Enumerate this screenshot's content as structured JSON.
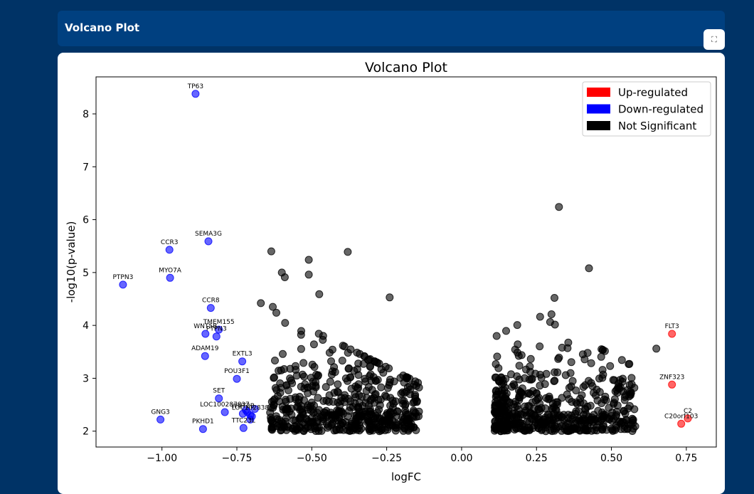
{
  "panel": {
    "title": "Volcano Plot",
    "expand_icon": "expand-icon"
  },
  "chart_data": {
    "type": "scatter",
    "title": "Volcano Plot",
    "xlabel": "logFC",
    "ylabel": "-log10(p-value)",
    "xlim": [
      -1.22,
      0.85
    ],
    "ylim": [
      1.7,
      8.7
    ],
    "xticks": [
      -1.0,
      -0.75,
      -0.5,
      -0.25,
      0.0,
      0.25,
      0.5,
      0.75
    ],
    "xtick_labels": [
      "−1.00",
      "−0.75",
      "−0.50",
      "−0.25",
      "0.00",
      "0.25",
      "0.50",
      "0.75"
    ],
    "yticks": [
      2,
      3,
      4,
      5,
      6,
      7,
      8
    ],
    "ytick_labels": [
      "2",
      "3",
      "4",
      "5",
      "6",
      "7",
      "8"
    ],
    "grid": false,
    "legend": {
      "position": "top-right",
      "entries": [
        {
          "label": "Up-regulated",
          "color": "#ff0000"
        },
        {
          "label": "Down-regulated",
          "color": "#0000ff"
        },
        {
          "label": "Not Significant",
          "color": "#000000"
        }
      ]
    },
    "colors": {
      "up": "#ff0000",
      "down": "#0000ff",
      "ns": "#000000"
    },
    "labeled_points": [
      {
        "label": "TP63",
        "x": -0.888,
        "y": 8.38,
        "group": "down"
      },
      {
        "label": "SEMA3G",
        "x": -0.845,
        "y": 5.59,
        "group": "down"
      },
      {
        "label": "CCR3",
        "x": -0.975,
        "y": 5.43,
        "group": "down"
      },
      {
        "label": "MYO7A",
        "x": -0.973,
        "y": 4.9,
        "group": "down"
      },
      {
        "label": "PTPN3",
        "x": -1.13,
        "y": 4.77,
        "group": "down"
      },
      {
        "label": "CCR8",
        "x": -0.837,
        "y": 4.33,
        "group": "down"
      },
      {
        "label": "TMEM155",
        "x": -0.81,
        "y": 3.92,
        "group": "down"
      },
      {
        "label": "WNT5B",
        "x": -0.855,
        "y": 3.84,
        "group": "down"
      },
      {
        "label": "PTPN3",
        "x": -0.818,
        "y": 3.79,
        "group": "down"
      },
      {
        "label": "ADAM19",
        "x": -0.856,
        "y": 3.42,
        "group": "down"
      },
      {
        "label": "EXTL3",
        "x": -0.732,
        "y": 3.32,
        "group": "down"
      },
      {
        "label": "POU3F1",
        "x": -0.75,
        "y": 2.99,
        "group": "down"
      },
      {
        "label": "SET",
        "x": -0.81,
        "y": 2.62,
        "group": "down"
      },
      {
        "label": "LOC100287837",
        "x": -0.79,
        "y": 2.36,
        "group": "down"
      },
      {
        "label": "WNT2B",
        "x": -0.73,
        "y": 2.33,
        "group": "down"
      },
      {
        "label": "LOC102838",
        "x": -0.705,
        "y": 2.3,
        "group": "down"
      },
      {
        "label": "GNG3",
        "x": -1.005,
        "y": 2.22,
        "group": "down"
      },
      {
        "label": "PKHD1",
        "x": -0.863,
        "y": 2.04,
        "group": "down"
      },
      {
        "label": "TTC23L",
        "x": -0.728,
        "y": 2.06,
        "group": "down"
      },
      {
        "label": "FLT3",
        "x": 0.702,
        "y": 3.84,
        "group": "up"
      },
      {
        "label": "ZNF323",
        "x": 0.702,
        "y": 2.88,
        "group": "up"
      },
      {
        "label": "C2",
        "x": 0.755,
        "y": 2.24,
        "group": "up"
      },
      {
        "label": "C20orf103",
        "x": 0.733,
        "y": 2.14,
        "group": "up"
      }
    ],
    "extra_down_points": [
      {
        "x": -0.72,
        "y": 2.4
      },
      {
        "x": -0.705,
        "y": 2.22
      },
      {
        "x": -0.69,
        "y": 2.42
      },
      {
        "x": -0.715,
        "y": 2.36
      },
      {
        "x": -0.7,
        "y": 2.28
      }
    ],
    "ns_points_sample": [
      [
        0.325,
        6.24
      ],
      [
        -0.38,
        5.39
      ],
      [
        -0.635,
        5.4
      ],
      [
        -0.51,
        5.24
      ],
      [
        -0.51,
        4.96
      ],
      [
        -0.6,
        5.0
      ],
      [
        -0.59,
        4.91
      ],
      [
        -0.475,
        4.59
      ],
      [
        0.425,
        5.08
      ],
      [
        -0.24,
        4.53
      ],
      [
        0.31,
        4.52
      ],
      [
        -0.67,
        4.42
      ],
      [
        -0.63,
        4.35
      ],
      [
        0.65,
        3.56
      ],
      [
        0.3,
        4.21
      ]
    ]
  }
}
